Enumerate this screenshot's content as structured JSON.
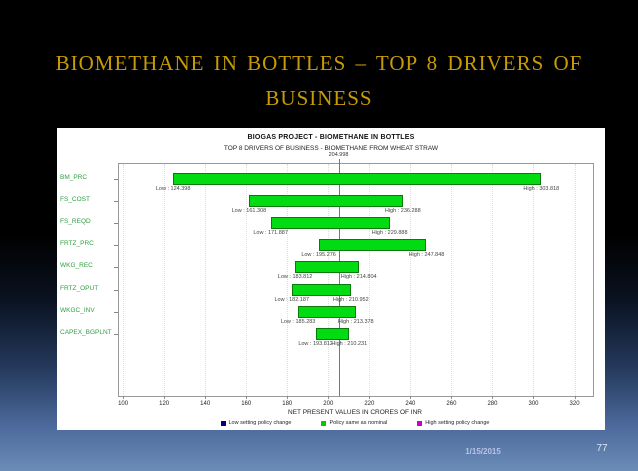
{
  "slide": {
    "title_line1": "BIOMETHANE IN BOTTLES – TOP 8 DRIVERS OF",
    "title_line2": "BUSINESS",
    "footer_date": "1/15/2015",
    "page_number": "77"
  },
  "colors": {
    "title_gold": "#c79b04",
    "bar_green": "#00db12",
    "bar_border_green": "#0a7a0a",
    "category_label_green": "#2f9e41",
    "legend_low": "#000080",
    "legend_nominal": "#00cc00",
    "legend_high": "#cc00cc",
    "background_top": "#000000",
    "background_bottom": "#6c8cb8"
  },
  "chart_data": {
    "type": "bar",
    "orientation": "horizontal-tornado",
    "title": "BIOGAS PROJECT  - BIOMETHANE IN BOTTLES",
    "subtitle": "TOP 8 DRIVERS OF BUSINESS - BIOMETHANE FROM WHEAT STRAW",
    "xlabel": "NET PRESENT VALUES IN CRORES OF INR",
    "base_value": 204.998,
    "base_label": "204.998",
    "xlim": [
      98,
      329
    ],
    "xticks": [
      100,
      120,
      140,
      160,
      180,
      200,
      220,
      240,
      260,
      280,
      300,
      320
    ],
    "grid": "dotted-vertical",
    "legend_position": "bottom",
    "categories": [
      "BM_PRC",
      "FS_COST",
      "FS_REQD",
      "FRTZ_PRC",
      "WKG_REC",
      "FRTZ_OPUT",
      "WKGC_INV",
      "CAPEX_BGPLNT"
    ],
    "bars": [
      {
        "category": "BM_PRC",
        "low": 124.398,
        "high": 303.818,
        "low_label": "Low : 124.398",
        "high_label": "High : 303.818"
      },
      {
        "category": "FS_COST",
        "low": 161.308,
        "high": 236.288,
        "low_label": "Low : 161.308",
        "high_label": "High : 236.288"
      },
      {
        "category": "FS_REQD",
        "low": 171.887,
        "high": 229.888,
        "low_label": "Low : 171.887",
        "high_label": "High : 229.888"
      },
      {
        "category": "FRTZ_PRC",
        "low": 195.276,
        "high": 247.848,
        "low_label": "Low : 195.276",
        "high_label": "High : 247.848"
      },
      {
        "category": "WKG_REC",
        "low": 183.812,
        "high": 214.804,
        "low_label": "Low : 183.812",
        "high_label": "High : 214.804"
      },
      {
        "category": "FRTZ_OPUT",
        "low": 182.187,
        "high": 210.952,
        "low_label": "Low : 182.187",
        "high_label": "High : 210.952"
      },
      {
        "category": "WKGC_INV",
        "low": 185.283,
        "high": 213.378,
        "low_label": "Low : 185.283",
        "high_label": "High : 213.378"
      },
      {
        "category": "CAPEX_BGPLNT",
        "low": 193.812,
        "high": 210.231,
        "low_label": "Low : 193.812",
        "high_label": "High : 210.231"
      }
    ],
    "legend": [
      {
        "color": "#000080",
        "label": "Low setting policy change"
      },
      {
        "color": "#00cc00",
        "label": "Policy same as nominal"
      },
      {
        "color": "#cc00cc",
        "label": "High setting policy change"
      }
    ]
  }
}
